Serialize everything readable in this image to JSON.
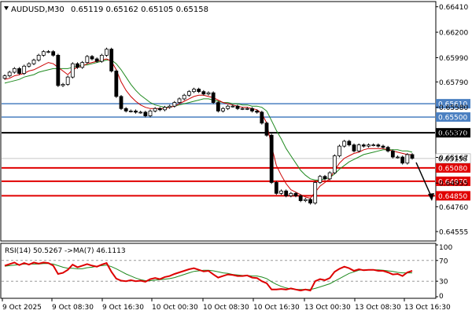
{
  "header": {
    "symbol": "AUDUSD,M30",
    "ohlc": "0.65119 0.65162 0.65105 0.65158"
  },
  "colors": {
    "bull_candle": "#ffffff",
    "bear_candle": "#000000",
    "ma_fast": "#cc0000",
    "ma_slow": "#1f8a1f",
    "level_blue": "#4a7fc1",
    "level_black": "#000000",
    "level_red": "#e00000",
    "rsi_line": "#dd0000",
    "rsi_ma": "#1f8a1f"
  },
  "chart_data": {
    "type": "candlestick",
    "y_ticks": [
      "0.66410",
      "0.66200",
      "0.65990",
      "0.65790",
      "0.65580",
      "0.65370",
      "0.65167",
      "0.64955",
      "0.64760",
      "0.64555"
    ],
    "ylim": [
      0.6449,
      0.6644
    ],
    "x_labels": [
      "9 Oct 2025",
      "9 Oct 08:30",
      "9 Oct 16:30",
      "10 Oct 00:30",
      "10 Oct 08:30",
      "10 Oct 16:30",
      "13 Oct 00:30",
      "13 Oct 08:30",
      "13 Oct 16:30"
    ],
    "levels": [
      {
        "label": "0.65610",
        "value": 0.6561,
        "color": "blue"
      },
      {
        "label": "0.65500",
        "value": 0.655,
        "color": "blue"
      },
      {
        "label": "0.65370",
        "value": 0.6537,
        "color": "black"
      },
      {
        "label": "0.65080",
        "value": 0.6508,
        "color": "red"
      },
      {
        "label": "0.64970",
        "value": 0.6497,
        "color": "red"
      },
      {
        "label": "0.64850",
        "value": 0.6485,
        "color": "red"
      }
    ],
    "current_price": "0.65158",
    "close": [
      0.6584,
      0.6587,
      0.659,
      0.6586,
      0.6592,
      0.6594,
      0.6597,
      0.6601,
      0.6604,
      0.6604,
      0.6601,
      0.6576,
      0.6577,
      0.6583,
      0.6594,
      0.6591,
      0.6595,
      0.66,
      0.6598,
      0.6596,
      0.6601,
      0.6606,
      0.6588,
      0.6567,
      0.6557,
      0.6555,
      0.6555,
      0.6554,
      0.6554,
      0.6551,
      0.6555,
      0.6557,
      0.6556,
      0.6558,
      0.6559,
      0.6562,
      0.6565,
      0.6568,
      0.6571,
      0.6573,
      0.6571,
      0.6569,
      0.657,
      0.6562,
      0.6555,
      0.6557,
      0.6559,
      0.6559,
      0.6557,
      0.6557,
      0.6557,
      0.6555,
      0.6554,
      0.6545,
      0.6535,
      0.6496,
      0.6487,
      0.6489,
      0.6485,
      0.6487,
      0.6485,
      0.6481,
      0.6482,
      0.6479,
      0.6496,
      0.6501,
      0.6499,
      0.6504,
      0.6518,
      0.6526,
      0.653,
      0.6527,
      0.6522,
      0.6527,
      0.6526,
      0.6527,
      0.6527,
      0.6526,
      0.6525,
      0.6522,
      0.6517,
      0.6517,
      0.6512,
      0.6519,
      0.6516
    ],
    "ma_fast": [
      0.6581,
      0.6582,
      0.6584,
      0.6585,
      0.6586,
      0.6588,
      0.6589,
      0.6591,
      0.6593,
      0.6595,
      0.6594,
      0.6591,
      0.6588,
      0.6585,
      0.6589,
      0.6591,
      0.6592,
      0.6594,
      0.6595,
      0.6596,
      0.6597,
      0.6598,
      0.6596,
      0.6589,
      0.6579,
      0.6572,
      0.6567,
      0.6563,
      0.656,
      0.6558,
      0.6557,
      0.6557,
      0.6557,
      0.6557,
      0.6558,
      0.6559,
      0.6561,
      0.6563,
      0.6565,
      0.6567,
      0.6568,
      0.6568,
      0.6567,
      0.6566,
      0.6564,
      0.6562,
      0.6561,
      0.656,
      0.6559,
      0.6558,
      0.6558,
      0.6557,
      0.6556,
      0.6553,
      0.6545,
      0.6526,
      0.651,
      0.6502,
      0.6495,
      0.649,
      0.6488,
      0.6486,
      0.6484,
      0.6483,
      0.6488,
      0.6493,
      0.6496,
      0.6499,
      0.6506,
      0.6512,
      0.6516,
      0.6518,
      0.652,
      0.6521,
      0.6523,
      0.6524,
      0.6524,
      0.6524,
      0.6524,
      0.6523,
      0.6522,
      0.6521,
      0.652,
      0.6519,
      0.6519
    ],
    "ma_slow": [
      0.6578,
      0.6579,
      0.658,
      0.6581,
      0.6583,
      0.6584,
      0.6585,
      0.6587,
      0.6588,
      0.6589,
      0.659,
      0.659,
      0.659,
      0.659,
      0.6591,
      0.6592,
      0.6593,
      0.6593,
      0.6594,
      0.6595,
      0.6596,
      0.6597,
      0.6597,
      0.6594,
      0.6589,
      0.6583,
      0.6577,
      0.6572,
      0.6568,
      0.6565,
      0.6562,
      0.656,
      0.6559,
      0.6558,
      0.6558,
      0.6559,
      0.656,
      0.6561,
      0.6562,
      0.6563,
      0.6564,
      0.6565,
      0.6565,
      0.6564,
      0.6563,
      0.6562,
      0.6562,
      0.6561,
      0.6561,
      0.656,
      0.656,
      0.6559,
      0.6559,
      0.6558,
      0.6555,
      0.6547,
      0.6539,
      0.6532,
      0.6524,
      0.6518,
      0.6512,
      0.6506,
      0.6502,
      0.6499,
      0.6498,
      0.6498,
      0.6499,
      0.65,
      0.6503,
      0.6507,
      0.651,
      0.6513,
      0.6515,
      0.6517,
      0.6519,
      0.652,
      0.6521,
      0.6522,
      0.6523,
      0.6523,
      0.6523,
      0.6523,
      0.6522,
      0.6522,
      0.6521
    ],
    "rsi": {
      "label": "RSI(14) 50.5267 ->MA(7) 46.1113",
      "y_ticks": [
        "100",
        "70",
        "30",
        "0"
      ],
      "ylim": [
        0,
        100
      ],
      "rsi_values": [
        60,
        63,
        66,
        61,
        65,
        62,
        66,
        64,
        66,
        65,
        60,
        44,
        46,
        52,
        62,
        57,
        60,
        63,
        60,
        58,
        62,
        65,
        48,
        35,
        31,
        30,
        32,
        30,
        31,
        29,
        34,
        36,
        34,
        38,
        40,
        44,
        47,
        50,
        53,
        55,
        52,
        49,
        50,
        43,
        37,
        40,
        43,
        42,
        40,
        40,
        41,
        37,
        36,
        30,
        26,
        14,
        14,
        15,
        14,
        16,
        14,
        12,
        14,
        12,
        30,
        34,
        32,
        36,
        48,
        54,
        58,
        55,
        50,
        53,
        51,
        52,
        52,
        50,
        50,
        47,
        43,
        44,
        40,
        47,
        50
      ],
      "ma_values": [
        59,
        60,
        61,
        62,
        63,
        63,
        63,
        63,
        64,
        64,
        63,
        60,
        57,
        55,
        55,
        54,
        54,
        56,
        57,
        59,
        60,
        61,
        58,
        54,
        49,
        44,
        40,
        36,
        33,
        31,
        31,
        32,
        33,
        34,
        35,
        37,
        40,
        43,
        46,
        49,
        50,
        51,
        51,
        50,
        48,
        46,
        45,
        43,
        42,
        41,
        41,
        40,
        40,
        38,
        35,
        29,
        24,
        20,
        17,
        15,
        14,
        14,
        14,
        14,
        16,
        19,
        22,
        25,
        30,
        35,
        40,
        45,
        48,
        51,
        52,
        52,
        52,
        52,
        51,
        50,
        49,
        47,
        46,
        46,
        46
      ]
    }
  }
}
